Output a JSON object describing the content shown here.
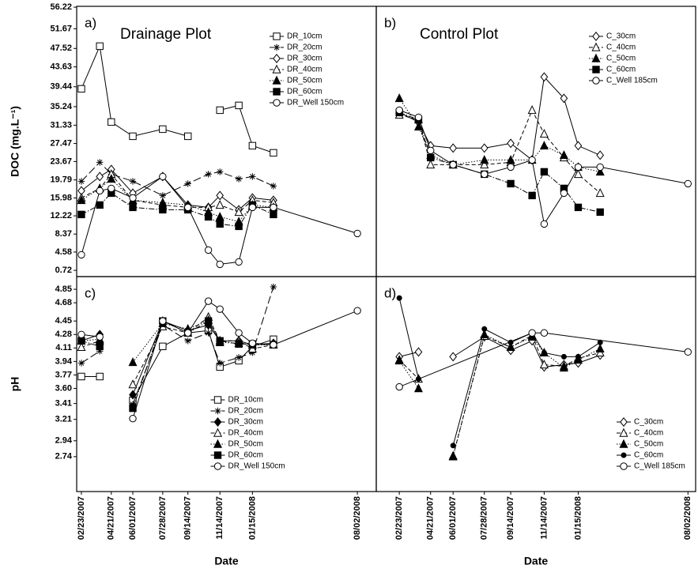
{
  "chart_data": [
    {
      "type": "line",
      "panel": "a)",
      "title": "Drainage Plot",
      "y_label": "DOC (mg.L⁻¹)",
      "legend": "top-right",
      "x": [
        "2007-02-23",
        "2007-03-30",
        "2007-04-21",
        "2007-06-01",
        "2007-07-28",
        "2007-09-14",
        "2007-10-23",
        "2007-11-14",
        "2007-12-20",
        "2008-01-15",
        "2008-02-24",
        "2008-08-02"
      ],
      "xlim": [
        "2007-02-14",
        "2008-09-07"
      ],
      "ylim": [
        -0.6,
        56.4
      ],
      "yticks": [
        0.72,
        4.58,
        8.37,
        12.22,
        15.98,
        19.79,
        23.67,
        27.47,
        31.33,
        35.24,
        39.44,
        43.63,
        47.52,
        51.67,
        56.22
      ],
      "series": [
        {
          "name": "DR_10cm",
          "color": "#000000",
          "marker": "square-open",
          "dash": "solid",
          "values": [
            39.0,
            48.0,
            32.0,
            29.0,
            30.5,
            29.0,
            null,
            34.5,
            35.5,
            27.0,
            25.5,
            null
          ]
        },
        {
          "name": "DR_20cm",
          "color": "#000000",
          "marker": "star",
          "dash": "longdash",
          "values": [
            19.5,
            23.5,
            21.0,
            19.5,
            16.5,
            19.0,
            21.0,
            21.5,
            20.0,
            20.5,
            18.5,
            null
          ]
        },
        {
          "name": "DR_30cm",
          "color": "#000000",
          "marker": "diamond-open",
          "dash": "solid",
          "values": [
            17.5,
            20.5,
            22.0,
            17.0,
            20.5,
            14.5,
            14.0,
            16.5,
            13.5,
            16.0,
            15.5,
            null
          ]
        },
        {
          "name": "DR_40cm",
          "color": "#000000",
          "marker": "triangle-open",
          "dash": "dash",
          "values": [
            16.0,
            18.0,
            21.0,
            15.5,
            14.5,
            14.0,
            14.0,
            14.5,
            13.0,
            15.5,
            15.0,
            null
          ]
        },
        {
          "name": "DR_50cm",
          "color": "#000000",
          "marker": "triangle-filled",
          "dash": "dot",
          "values": [
            15.5,
            18.0,
            20.0,
            15.5,
            15.0,
            14.5,
            13.0,
            12.0,
            11.0,
            14.5,
            14.0,
            null
          ]
        },
        {
          "name": "DR_60cm",
          "color": "#000000",
          "marker": "square-filled",
          "dash": "dashdot",
          "values": [
            12.5,
            14.5,
            17.0,
            14.0,
            13.5,
            13.5,
            12.0,
            10.5,
            10.0,
            14.5,
            12.5,
            null
          ]
        },
        {
          "name": "DR_Well 150cm",
          "color": "#000000",
          "marker": "circle-open",
          "dash": "solid",
          "values": [
            4.0,
            17.5,
            18.0,
            16.0,
            20.5,
            14.0,
            5.0,
            2.0,
            2.5,
            14.0,
            14.0,
            8.5
          ]
        }
      ]
    },
    {
      "type": "line",
      "panel": "b)",
      "title": "Control Plot",
      "legend": "top-right",
      "x": [
        "2007-02-23",
        "2007-03-30",
        "2007-04-21",
        "2007-06-01",
        "2007-07-28",
        "2007-09-14",
        "2007-10-23",
        "2007-11-14",
        "2007-12-20",
        "2008-01-15",
        "2008-02-24",
        "2008-08-02"
      ],
      "xlim": [
        "2007-01-12",
        "2008-08-16"
      ],
      "ylim": [
        -0.6,
        56.4
      ],
      "series": [
        {
          "name": "C_30cm",
          "color": "#000000",
          "marker": "diamond-open",
          "dash": "solid",
          "values": [
            34.0,
            32.0,
            27.0,
            26.5,
            26.5,
            27.5,
            24.0,
            41.5,
            37.0,
            27.0,
            25.0,
            null
          ]
        },
        {
          "name": "C_40cm",
          "color": "#000000",
          "marker": "triangle-open",
          "dash": "dash",
          "values": [
            33.5,
            32.5,
            23.0,
            23.0,
            23.0,
            23.5,
            34.5,
            29.5,
            24.5,
            21.0,
            17.0,
            null
          ]
        },
        {
          "name": "C_50cm",
          "color": "#000000",
          "marker": "triangle-filled",
          "dash": "dot",
          "values": [
            37.0,
            31.0,
            25.0,
            23.0,
            24.0,
            24.0,
            24.0,
            27.0,
            25.0,
            22.5,
            21.5,
            null
          ]
        },
        {
          "name": "C_60cm",
          "color": "#000000",
          "marker": "square-filled",
          "dash": "dashdot",
          "values": [
            34.0,
            32.5,
            24.5,
            23.0,
            21.0,
            19.0,
            16.5,
            21.5,
            18.0,
            14.0,
            13.0,
            null
          ]
        },
        {
          "name": "C_Well 185cm",
          "color": "#000000",
          "marker": "circle-open",
          "dash": "solid",
          "values": [
            34.5,
            33.0,
            26.0,
            23.0,
            21.0,
            22.5,
            24.0,
            10.5,
            17.0,
            22.5,
            22.5,
            19.0
          ]
        }
      ]
    },
    {
      "type": "line",
      "panel": "c)",
      "y_label": "pH",
      "x_label": "Date",
      "legend": "bottom-center",
      "x": [
        "2007-02-23",
        "2007-03-30",
        "2007-04-21",
        "2007-06-01",
        "2007-07-28",
        "2007-09-14",
        "2007-10-23",
        "2007-11-14",
        "2007-12-20",
        "2008-01-15",
        "2008-02-24",
        "2008-08-02"
      ],
      "xlim": [
        "2007-02-14",
        "2008-09-07"
      ],
      "ylim": [
        2.3,
        5.01
      ],
      "xticks": [
        {
          "value": "2007-02-23",
          "label": "02/23/2007"
        },
        {
          "value": "2007-04-21",
          "label": "04/21/2007"
        },
        {
          "value": "2007-06-01",
          "label": "06/01/2007"
        },
        {
          "value": "2007-07-28",
          "label": "07/28/2007"
        },
        {
          "value": "2007-09-14",
          "label": "09/14/2007"
        },
        {
          "value": "2007-11-14",
          "label": "11/14/2007"
        },
        {
          "value": "2008-01-15",
          "label": "01/15/2008"
        },
        {
          "value": "2008-08-02",
          "label": "08/02/2008"
        }
      ],
      "yticks": [
        2.74,
        2.94,
        3.21,
        3.41,
        {
          "value": 3.6,
          "label": "3.60"
        },
        3.77,
        3.94,
        4.11,
        4.28,
        4.45,
        4.68,
        4.85
      ],
      "series": [
        {
          "name": "DR_10cm",
          "color": "#000000",
          "marker": "square-open",
          "dash": "solid",
          "values": [
            3.75,
            3.75,
            null,
            3.45,
            4.13,
            4.3,
            4.33,
            3.87,
            3.95,
            4.13,
            4.22,
            null
          ]
        },
        {
          "name": "DR_20cm",
          "color": "#000000",
          "marker": "star",
          "dash": "longdash",
          "values": [
            3.92,
            4.07,
            null,
            3.4,
            4.4,
            4.2,
            4.3,
            3.92,
            3.99,
            4.05,
            4.88,
            null
          ]
        },
        {
          "name": "DR_30cm",
          "color": "#000000",
          "marker": "diamond-filled",
          "dash": "solid",
          "values": [
            4.2,
            4.28,
            null,
            3.52,
            4.45,
            4.33,
            4.4,
            4.2,
            4.2,
            4.15,
            4.17,
            null
          ]
        },
        {
          "name": "DR_40cm",
          "color": "#000000",
          "marker": "triangle-open",
          "dash": "dash",
          "values": [
            4.12,
            4.2,
            null,
            3.65,
            4.38,
            4.3,
            4.5,
            4.2,
            4.2,
            4.1,
            4.15,
            null
          ]
        },
        {
          "name": "DR_50cm",
          "color": "#000000",
          "marker": "triangle-filled",
          "dash": "dot",
          "values": [
            4.2,
            4.22,
            null,
            3.93,
            4.42,
            4.35,
            4.46,
            4.18,
            4.17,
            4.15,
            4.15,
            null
          ]
        },
        {
          "name": "DR_60cm",
          "color": "#000000",
          "marker": "square-filled",
          "dash": "dashdot",
          "values": [
            4.2,
            4.13,
            null,
            3.35,
            4.45,
            4.3,
            4.45,
            4.2,
            4.16,
            4.16,
            4.15,
            null
          ]
        },
        {
          "name": "DR_Well 150cm",
          "color": "#000000",
          "marker": "circle-open",
          "dash": "solid",
          "values": [
            4.28,
            4.25,
            null,
            3.22,
            4.45,
            4.3,
            4.7,
            4.6,
            4.3,
            4.17,
            4.15,
            4.58
          ]
        }
      ]
    },
    {
      "type": "line",
      "panel": "d)",
      "x_label": "Date",
      "legend": "bottom-right",
      "x": [
        "2007-02-23",
        "2007-03-30",
        "2007-04-21",
        "2007-06-01",
        "2007-07-28",
        "2007-09-14",
        "2007-10-23",
        "2007-11-14",
        "2007-12-20",
        "2008-01-15",
        "2008-02-24",
        "2008-08-02"
      ],
      "xlim": [
        "2007-01-12",
        "2008-08-16"
      ],
      "ylim": [
        2.3,
        5.01
      ],
      "xticks": [
        {
          "value": "2007-02-23",
          "label": "02/23/2007"
        },
        {
          "value": "2007-04-21",
          "label": "04/21/2007"
        },
        {
          "value": "2007-06-01",
          "label": "06/01/2007"
        },
        {
          "value": "2007-07-28",
          "label": "07/28/2007"
        },
        {
          "value": "2007-09-14",
          "label": "09/14/2007"
        },
        {
          "value": "2007-11-14",
          "label": "11/14/2007"
        },
        {
          "value": "2008-01-15",
          "label": "01/15/2008"
        },
        {
          "value": "2008-08-02",
          "label": "08/02/2008"
        }
      ],
      "series": [
        {
          "name": "C_30cm",
          "color": "#000000",
          "marker": "diamond-open",
          "dash": "solid",
          "values": [
            4.0,
            4.06,
            null,
            4.0,
            4.25,
            4.08,
            4.2,
            3.87,
            3.9,
            3.92,
            4.02,
            null
          ]
        },
        {
          "name": "C_40cm",
          "color": "#000000",
          "marker": "triangle-open",
          "dash": "dash",
          "values": [
            3.96,
            3.72,
            null,
            2.75,
            4.26,
            4.12,
            4.27,
            3.9,
            3.88,
            3.98,
            4.05,
            null
          ]
        },
        {
          "name": "C_50cm",
          "color": "#000000",
          "marker": "triangle-filled",
          "dash": "dot",
          "values": [
            3.95,
            3.6,
            null,
            2.74,
            4.28,
            4.12,
            4.25,
            4.05,
            3.86,
            3.96,
            4.1,
            null
          ]
        },
        {
          "name": "C_60cm",
          "color": "#000000",
          "marker": "circle-filled",
          "dash": "solid",
          "values": [
            4.74,
            3.72,
            null,
            2.88,
            4.35,
            4.18,
            4.3,
            4.05,
            4.0,
            4.0,
            4.18,
            null
          ]
        },
        {
          "name": "C_Well 185cm",
          "color": "#000000",
          "marker": "circle-open",
          "dash": "solid",
          "x": [
            "2007-02-23",
            "2007-10-23",
            "2007-11-14",
            "2008-08-02"
          ],
          "values": [
            3.62,
            4.3,
            4.3,
            4.06
          ]
        }
      ]
    }
  ]
}
